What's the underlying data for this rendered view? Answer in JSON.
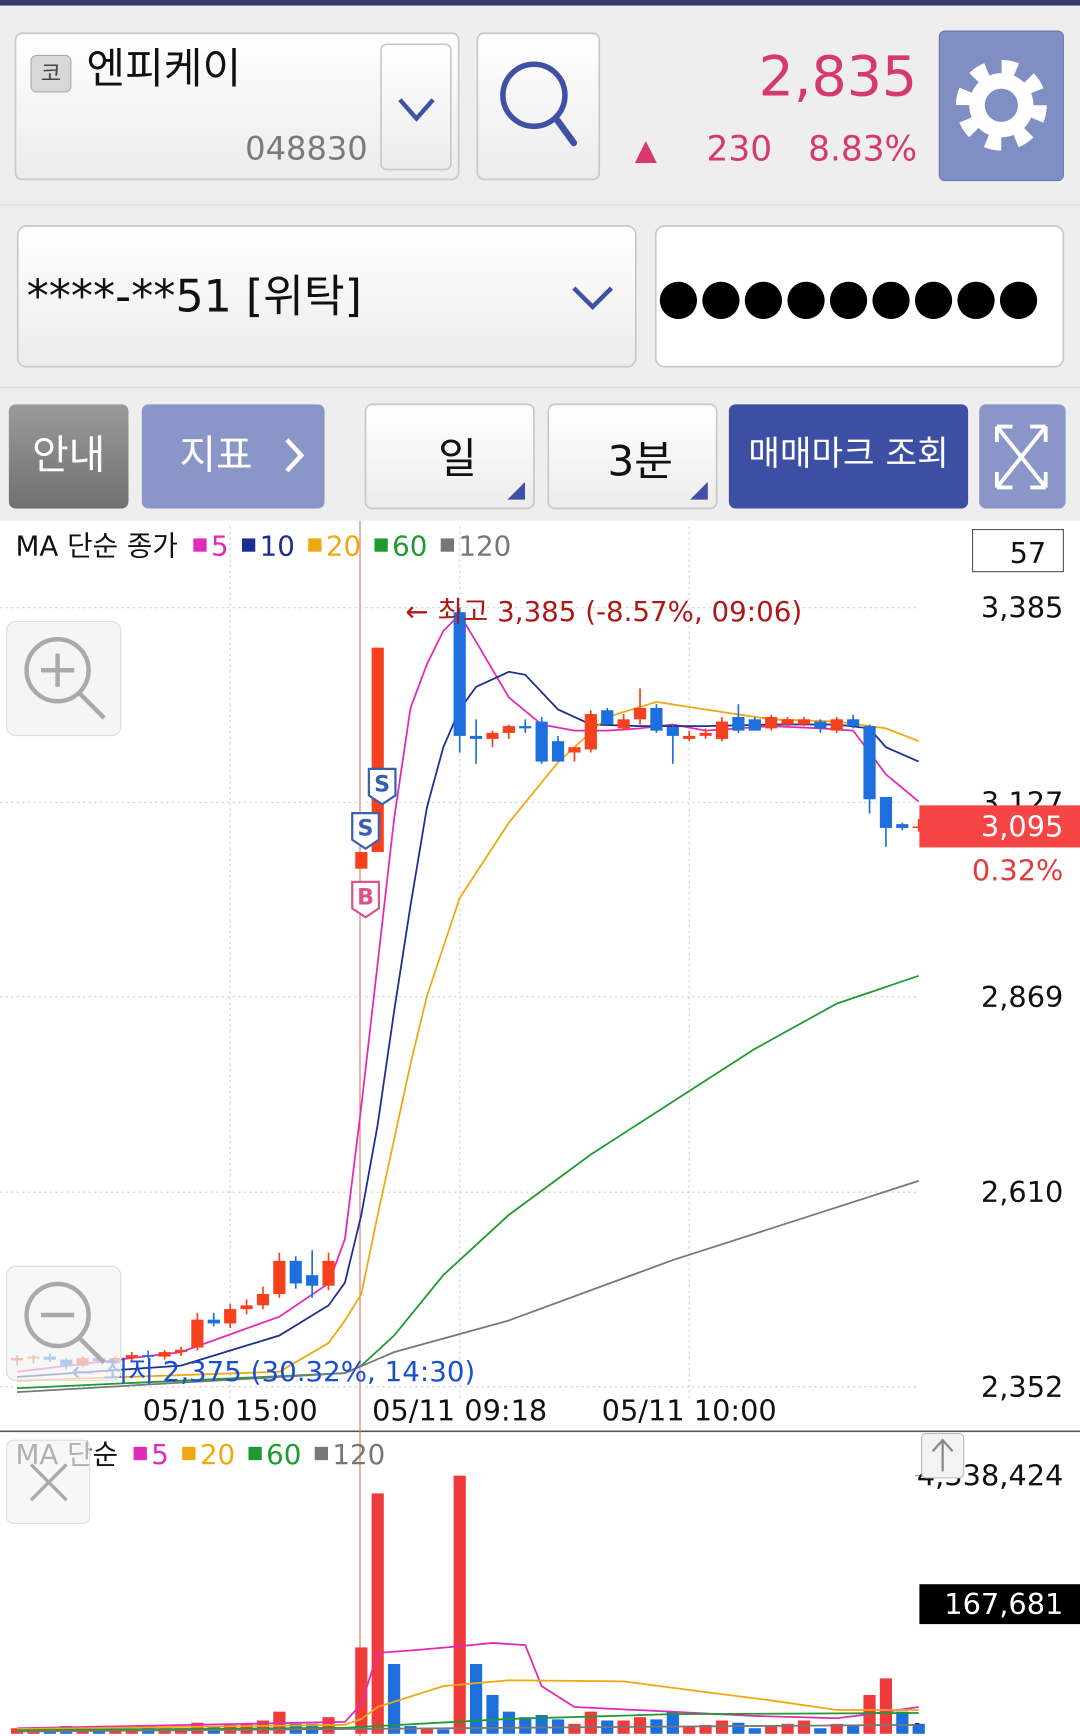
{
  "header": {
    "market_badge": "코",
    "name": "엔피케이",
    "code": "048830",
    "price": "2,835",
    "arrow": "▲",
    "change": "230",
    "change_pct": "8.83%"
  },
  "account": {
    "number": "****-**51 [위탁]",
    "password": "●●●●●●●●●"
  },
  "toolbar": {
    "guide": "안내",
    "indicator": "지표",
    "period": "일",
    "interval": "3분",
    "trade_mark": "매매마크 조회"
  },
  "chart_data": [
    {
      "type": "candlestick",
      "title": "MA 단순 종가",
      "categories": [
        null,
        null,
        null,
        null,
        null,
        null,
        null,
        null,
        null,
        null,
        null,
        null,
        null,
        "05/10 15:00",
        null,
        null,
        null,
        null,
        null,
        null,
        null,
        null,
        null,
        null,
        null,
        null,
        null,
        "05/11 09:18",
        null,
        null,
        null,
        null,
        null,
        null,
        null,
        null,
        null,
        null,
        null,
        null,
        null,
        "05/11 10:00",
        null,
        null,
        null,
        null,
        null,
        null,
        null,
        null,
        null,
        null,
        null,
        null,
        null,
        null
      ],
      "open": [
        2387,
        2390,
        2392,
        2388,
        2380,
        2390,
        2386,
        2390,
        2394,
        2392,
        2398,
        2404,
        2441,
        2436,
        2455,
        2460,
        2475,
        2519,
        2500,
        2486,
        null,
        3039,
        3061,
        null,
        null,
        null,
        null,
        3379,
        3215,
        3211,
        3219,
        3228,
        3234,
        3208,
        3193,
        3197,
        3249,
        3225,
        3237,
        3252,
        3227,
        3211,
        3215,
        3211,
        3240,
        3237,
        3225,
        3230,
        3230,
        3234,
        3222,
        3237,
        3228,
        3134,
        3098,
        3093
      ],
      "high": [
        2394,
        2394,
        2396,
        2390,
        2392,
        2395,
        2392,
        2398,
        2400,
        2401,
        2405,
        2450,
        2450,
        2462,
        2468,
        2485,
        2530,
        2525,
        2533,
        2530,
        null,
        3061,
        3332,
        null,
        null,
        null,
        null,
        3385,
        3237,
        3222,
        3230,
        3237,
        3240,
        3215,
        3200,
        3249,
        3252,
        3244,
        3278,
        3257,
        3230,
        3222,
        3225,
        3240,
        3257,
        3240,
        3243,
        3240,
        3240,
        3237,
        3240,
        3243,
        3230,
        3134,
        3100,
        3105
      ],
      "low": [
        2380,
        2383,
        2385,
        2375,
        2378,
        2384,
        2382,
        2386,
        2390,
        2388,
        2393,
        2400,
        2432,
        2430,
        2448,
        2455,
        2470,
        2482,
        2470,
        2480,
        null,
        3039,
        3061,
        null,
        null,
        null,
        null,
        3193,
        3178,
        3200,
        3211,
        3219,
        3178,
        3181,
        3181,
        3193,
        3230,
        3222,
        3230,
        3219,
        3178,
        3208,
        3211,
        3208,
        3219,
        3222,
        3222,
        3228,
        3228,
        3219,
        3219,
        3225,
        3112,
        3068,
        3090,
        3088
      ],
      "close": [
        2390,
        2392,
        2388,
        2380,
        2390,
        2386,
        2390,
        2394,
        2392,
        2398,
        2401,
        2441,
        2436,
        2455,
        2460,
        2475,
        2519,
        2489,
        2486,
        2519,
        null,
        3061,
        3332,
        null,
        null,
        null,
        null,
        3215,
        3211,
        3219,
        3228,
        3225,
        3181,
        3181,
        3200,
        3244,
        3230,
        3237,
        3252,
        3222,
        3215,
        3215,
        3219,
        3234,
        3222,
        3222,
        3240,
        3237,
        3237,
        3225,
        3237,
        3228,
        3131,
        3093,
        3093,
        3095
      ],
      "up_color": "#f5411e",
      "down_color": "#1d6fdd",
      "ma": [
        {
          "name": "5",
          "color": "#e22ab8",
          "x": [
            0,
            10,
            16,
            19,
            20,
            21,
            22,
            23,
            24,
            25,
            26,
            27,
            28,
            30,
            32,
            34,
            36,
            38,
            40,
            42,
            44,
            46,
            49,
            51,
            52,
            53,
            55
          ],
          "values": [
            2372,
            2398,
            2445,
            2489,
            2548,
            2724,
            2914,
            3105,
            3252,
            3310,
            3354,
            3376,
            3340,
            3266,
            3230,
            3222,
            3222,
            3225,
            3230,
            3222,
            3225,
            3228,
            3225,
            3222,
            3193,
            3164,
            3128
          ]
        },
        {
          "name": "10",
          "color": "#1a2f8f",
          "x": [
            0,
            10,
            16,
            19,
            20,
            21,
            22,
            23,
            24,
            25,
            26,
            27,
            28,
            30,
            31,
            33,
            35,
            38,
            42,
            46,
            50,
            52,
            53,
            55
          ],
          "values": [
            2365,
            2380,
            2420,
            2460,
            2490,
            2580,
            2700,
            2850,
            2990,
            3120,
            3200,
            3250,
            3280,
            3300,
            3296,
            3250,
            3230,
            3228,
            3228,
            3230,
            3230,
            3225,
            3200,
            3181
          ]
        },
        {
          "name": "20",
          "color": "#f0a810",
          "x": [
            0,
            16,
            19,
            20,
            21,
            22,
            23,
            24,
            25,
            27,
            30,
            33,
            36,
            39,
            42,
            46,
            50,
            53,
            55
          ],
          "values": [
            2360,
            2372,
            2410,
            2440,
            2475,
            2580,
            2680,
            2780,
            2870,
            3000,
            3100,
            3180,
            3240,
            3260,
            3250,
            3237,
            3234,
            3225,
            3208
          ]
        },
        {
          "name": "60",
          "color": "#1e9a30",
          "x": [
            0,
            20,
            21,
            23,
            26,
            30,
            35,
            40,
            45,
            50,
            55
          ],
          "values": [
            2350,
            2370,
            2380,
            2420,
            2500,
            2580,
            2660,
            2730,
            2800,
            2860,
            2897
          ]
        },
        {
          "name": "120",
          "color": "#777777",
          "x": [
            0,
            20,
            23,
            30,
            40,
            50,
            55
          ],
          "values": [
            2345,
            2370,
            2398,
            2440,
            2520,
            2590,
            2625
          ]
        }
      ],
      "ylim": [
        2337,
        3493
      ],
      "yticks": [
        {
          "value": 2352,
          "label": "2,352"
        },
        {
          "value": 2610,
          "label": "2,610"
        },
        {
          "value": 2869,
          "label": "2,869"
        },
        {
          "value": 3127,
          "label": "3,127"
        },
        {
          "value": 3385,
          "label": "3,385"
        }
      ],
      "grid": true,
      "annotations": [
        "← 최고 3,385 (-8.57%, 09:06)",
        "← 최저 2,375 (30.32%, 14:30)"
      ],
      "signals": [
        "S",
        "S",
        "B"
      ],
      "visible_count": 57,
      "current": {
        "value": 3095,
        "label": "3,095",
        "change": {
          "value": 0.32,
          "label": "0.32%"
        }
      }
    },
    {
      "type": "bar",
      "title": "MA 단순",
      "values": [
        93000,
        93000,
        74000,
        130000,
        93000,
        74000,
        93000,
        74000,
        112000,
        93000,
        93000,
        186000,
        130000,
        149000,
        167000,
        223000,
        372000,
        167000,
        167000,
        279000,
        null,
        1452000,
        4040000,
        1173000,
        130000,
        93000,
        74000,
        4338424,
        1173000,
        652000,
        372000,
        279000,
        316000,
        242000,
        167000,
        372000,
        223000,
        223000,
        279000,
        242000,
        372000,
        130000,
        149000,
        223000,
        186000,
        93000,
        130000,
        167000,
        223000,
        93000,
        167000,
        130000,
        652000,
        931000,
        372000,
        167681
      ],
      "colors": [
        "#f03b3b",
        "#f03b3b",
        "#1c6fdc",
        "#1c6fdc",
        "#f03b3b",
        "#1c6fdc",
        "#f03b3b",
        "#f03b3b",
        "#1c6fdc",
        "#f03b3b",
        "#f03b3b",
        "#f03b3b",
        "#1c6fdc",
        "#f03b3b",
        "#f03b3b",
        "#f03b3b",
        "#f03b3b",
        "#1c6fdc",
        "#1c6fdc",
        "#f03b3b",
        null,
        "#f03b3b",
        "#f03b3b",
        "#1c6fdc",
        "#1c6fdc",
        "#f03b3b",
        "#1c6fdc",
        "#f03b3b",
        "#1c6fdc",
        "#1c6fdc",
        "#1c6fdc",
        "#1c6fdc",
        "#1c6fdc",
        "#1c6fdc",
        "#f03b3b",
        "#f03b3b",
        "#1c6fdc",
        "#f03b3b",
        "#f03b3b",
        "#1c6fdc",
        "#1c6fdc",
        "#f03b3b",
        "#f03b3b",
        "#f03b3b",
        "#1c6fdc",
        "#1c6fdc",
        "#f03b3b",
        "#f03b3b",
        "#f03b3b",
        "#1c6fdc",
        "#f03b3b",
        "#1c6fdc",
        "#f03b3b",
        "#f03b3b",
        "#1c6fdc",
        "#1c6fdc"
      ],
      "ma": [
        {
          "name": "5",
          "color": "#e22ab8",
          "x": [
            0,
            20,
            21,
            22,
            24,
            27,
            29,
            31,
            32,
            34,
            40,
            45,
            50,
            52,
            55
          ],
          "values": [
            93000,
            200000,
            500000,
            1360000,
            1400000,
            1470000,
            1526000,
            1490000,
            800000,
            450000,
            370000,
            300000,
            260000,
            330000,
            450000
          ]
        },
        {
          "name": "20",
          "color": "#f0a810",
          "x": [
            0,
            20,
            21,
            22,
            26,
            30,
            37,
            42,
            46,
            50,
            55
          ],
          "values": [
            80000,
            150000,
            250000,
            450000,
            800000,
            900000,
            880000,
            700000,
            560000,
            400000,
            400000
          ]
        },
        {
          "name": "60",
          "color": "#1e9a30",
          "x": [
            0,
            20,
            30,
            40,
            55
          ],
          "values": [
            60000,
            100000,
            250000,
            330000,
            350000
          ]
        },
        {
          "name": "120",
          "color": "#777777",
          "x": [
            0,
            30,
            55
          ],
          "values": [
            40000,
            100000,
            150000
          ]
        }
      ],
      "ylim": [
        0,
        5027000
      ],
      "yticks": [
        {
          "value": 4338424,
          "label": "4,338,424"
        }
      ],
      "current": {
        "value": 167681,
        "label": "167,681"
      }
    }
  ]
}
